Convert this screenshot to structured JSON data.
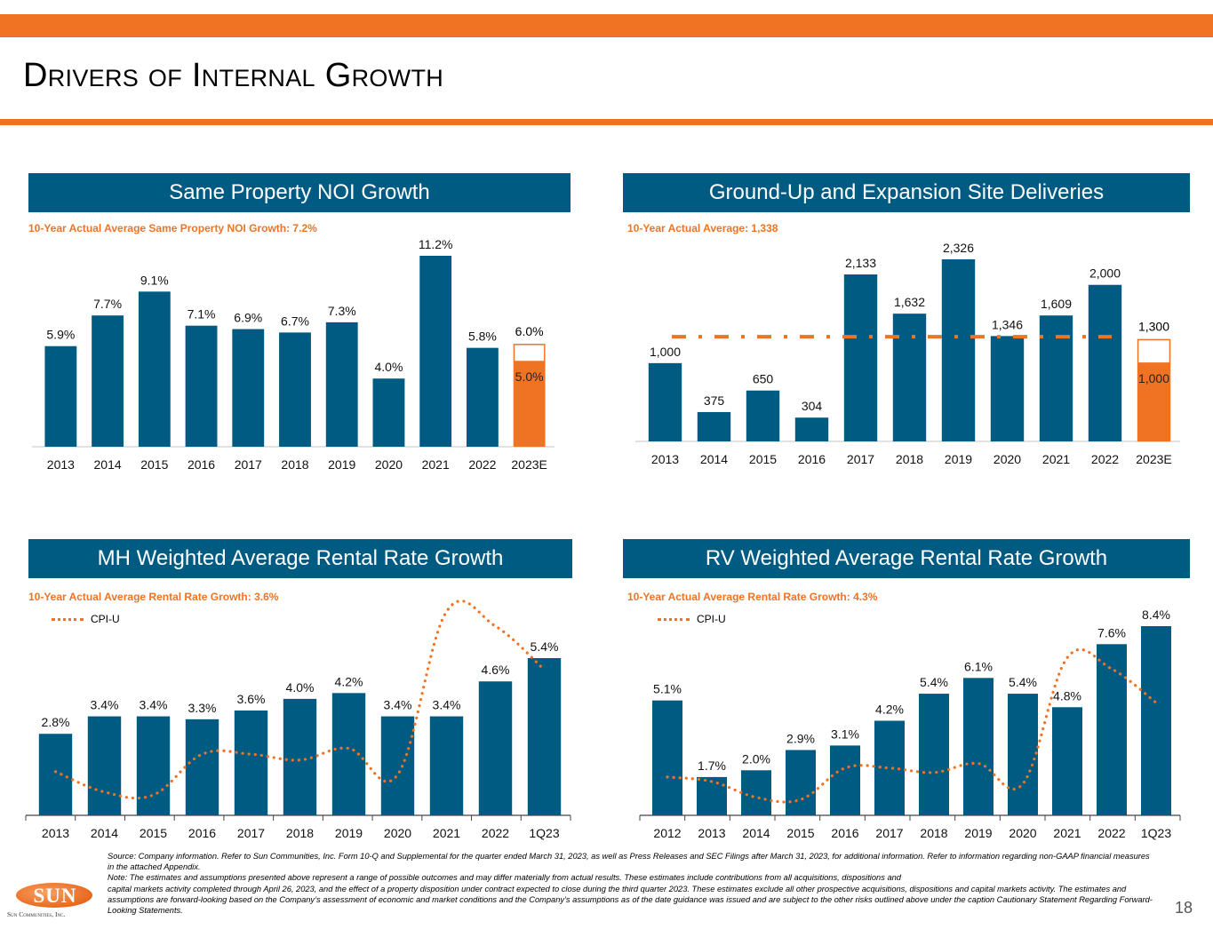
{
  "page": {
    "title": "Drivers of Internal Growth",
    "page_number": "18",
    "accent_color": "#F07324",
    "primary_color": "#005B82"
  },
  "panels": [
    {
      "header": "Same Property NOI Growth",
      "subtitle": "10-Year Actual Average Same Property NOI Growth: 7.2%"
    },
    {
      "header": "Ground-Up and Expansion Site Deliveries",
      "subtitle": "10-Year Actual Average: 1,338"
    },
    {
      "header": "MH Weighted Average Rental Rate Growth",
      "subtitle": "10-Year Actual Average Rental Rate Growth: 3.6%",
      "legend": "CPI-U"
    },
    {
      "header": "RV Weighted Average Rental Rate Growth",
      "subtitle": "10-Year Actual Average Rental Rate Growth: 4.3%",
      "legend": "CPI-U"
    }
  ],
  "chart_data": [
    {
      "type": "bar",
      "title": "Same Property NOI Growth",
      "categories": [
        "2013",
        "2014",
        "2015",
        "2016",
        "2017",
        "2018",
        "2019",
        "2020",
        "2021",
        "2022",
        "2023E"
      ],
      "values": [
        5.9,
        7.7,
        9.1,
        7.1,
        6.9,
        6.7,
        7.3,
        4.0,
        11.2,
        5.8,
        5.0
      ],
      "labels": [
        "5.9%",
        "7.7%",
        "9.1%",
        "7.1%",
        "6.9%",
        "6.7%",
        "7.3%",
        "4.0%",
        "11.2%",
        "5.8%",
        "5.0%"
      ],
      "estimate_range": {
        "category": "2023E",
        "low": 5.0,
        "high": 6.0,
        "low_label": "5.0%",
        "high_label": "6.0%"
      },
      "ylim": [
        0,
        11.2
      ],
      "xlabel": "",
      "ylabel": ""
    },
    {
      "type": "bar",
      "title": "Ground-Up and Expansion Site Deliveries",
      "categories": [
        "2013",
        "2014",
        "2015",
        "2016",
        "2017",
        "2018",
        "2019",
        "2020",
        "2021",
        "2022",
        "2023E"
      ],
      "values": [
        1000,
        375,
        650,
        304,
        2133,
        1632,
        2326,
        1346,
        1609,
        2000,
        1000
      ],
      "labels": [
        "1,000",
        "375",
        "650",
        "304",
        "2,133",
        "1,632",
        "2,326",
        "1,346",
        "1,609",
        "2,000",
        "1,000"
      ],
      "estimate_range": {
        "category": "2023E",
        "low": 1000,
        "high": 1300,
        "low_label": "1,000",
        "high_label": "1,300"
      },
      "average_line": 1338,
      "ylim": [
        0,
        2326
      ],
      "xlabel": "",
      "ylabel": ""
    },
    {
      "type": "bar",
      "title": "MH Weighted Average Rental Rate Growth",
      "categories": [
        "2013",
        "2014",
        "2015",
        "2016",
        "2017",
        "2018",
        "2019",
        "2020",
        "2021",
        "2022",
        "1Q23"
      ],
      "values": [
        2.8,
        3.4,
        3.4,
        3.3,
        3.6,
        4.0,
        4.2,
        3.4,
        3.4,
        4.6,
        5.4
      ],
      "labels": [
        "2.8%",
        "3.4%",
        "3.4%",
        "3.3%",
        "3.6%",
        "4.0%",
        "4.2%",
        "3.4%",
        "3.4%",
        "4.6%",
        "5.4%"
      ],
      "series": [
        {
          "name": "CPI-U",
          "type": "line",
          "values": [
            1.5,
            0.8,
            0.7,
            2.1,
            2.1,
            1.9,
            2.3,
            1.4,
            7.0,
            6.5,
            5.0
          ]
        }
      ],
      "ylim": [
        0,
        7.2
      ],
      "xlabel": "",
      "ylabel": ""
    },
    {
      "type": "bar",
      "title": "RV Weighted Average Rental Rate Growth",
      "categories": [
        "2012",
        "2013",
        "2014",
        "2015",
        "2016",
        "2017",
        "2018",
        "2019",
        "2020",
        "2021",
        "2022",
        "1Q23"
      ],
      "values": [
        5.1,
        1.7,
        2.0,
        2.9,
        3.1,
        4.2,
        5.4,
        6.1,
        5.4,
        4.8,
        7.6,
        8.4
      ],
      "labels": [
        "5.1%",
        "1.7%",
        "2.0%",
        "2.9%",
        "3.1%",
        "4.2%",
        "5.4%",
        "6.1%",
        "5.4%",
        "4.8%",
        "7.6%",
        "8.4%"
      ],
      "series": [
        {
          "name": "CPI-U",
          "type": "line",
          "values": [
            1.7,
            1.5,
            0.8,
            0.7,
            2.1,
            2.1,
            1.9,
            2.3,
            1.4,
            7.0,
            6.5,
            5.0
          ]
        }
      ],
      "ylim": [
        0,
        8.4
      ],
      "xlabel": "",
      "ylabel": ""
    }
  ],
  "footer": {
    "source": "Source: Company information. Refer to Sun Communities, Inc. Form 10-Q and Supplemental for the quarter ended March 31, 2023, as well as Press Releases and SEC Filings after  March 31, 2023, for additional information. Refer to information regarding non-GAAP financial measures in the attached Appendix.",
    "note_1": "Note: The estimates and assumptions presented above represent a range of possible outcomes and may differ materially from actual results. These estimates include contributions from all acquisitions, dispositions and",
    "note_2": "capital markets activity completed through April 26, 2023, and the effect of a property disposition under contract expected to close during the third quarter 2023.  These estimates exclude all other prospective acquisitions, dispositions and capital markets activity. The estimates and assumptions are forward-looking based on the Company’s assessment of economic and market conditions and the Company’s assumptions as of the date guidance was issued and are subject to the other risks outlined above under the caption Cautionary Statement Regarding Forward-Looking Statements.",
    "logo_text": "SUN",
    "logo_subtext": "Sun Communities, Inc."
  }
}
